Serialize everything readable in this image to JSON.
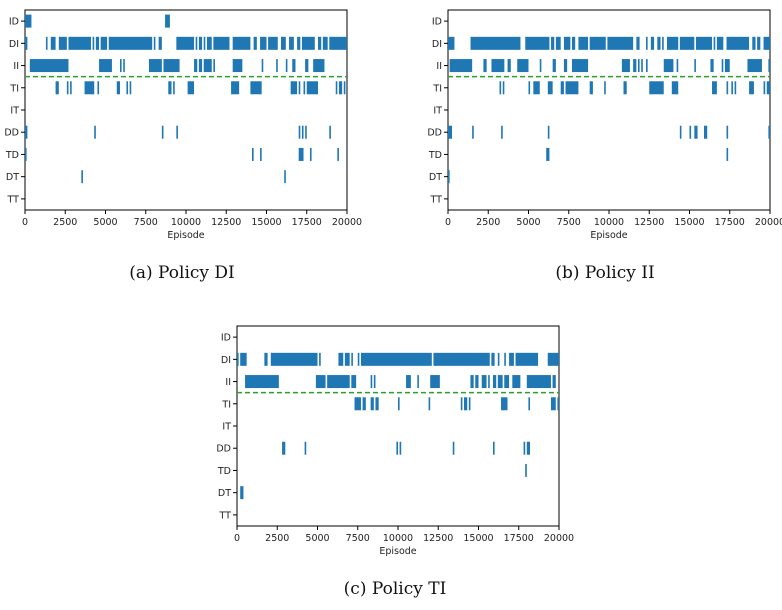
{
  "colors": {
    "bar": "#1f77b4",
    "divider": "#2ca02c",
    "axes": "#000000"
  },
  "chart_data": [
    {
      "type": "event-raster",
      "caption": "(a) Policy DI",
      "xlabel": "Episode",
      "xlim": [
        0,
        20000
      ],
      "xticks": [
        "0",
        "2500",
        "5000",
        "7500",
        "10000",
        "12500",
        "15000",
        "17500",
        "20000"
      ],
      "rows": [
        "ID",
        "DI",
        "II",
        "TI",
        "IT",
        "DD",
        "TD",
        "DT",
        "TT"
      ],
      "divider_between": [
        "II",
        "TI"
      ],
      "divider_style": "dashed",
      "segments": {
        "ID": [
          [
            0,
            400
          ],
          [
            8700,
            9000
          ]
        ],
        "DI": [
          [
            0,
            150
          ],
          [
            1300,
            1400
          ],
          [
            1600,
            1900
          ],
          [
            2100,
            2600
          ],
          [
            2700,
            4100
          ],
          [
            4200,
            4300
          ],
          [
            4400,
            4600
          ],
          [
            4700,
            5100
          ],
          [
            5200,
            7900
          ],
          [
            8000,
            8100
          ],
          [
            8300,
            8500
          ],
          [
            9400,
            10500
          ],
          [
            10600,
            10700
          ],
          [
            10800,
            11000
          ],
          [
            11100,
            11200
          ],
          [
            11300,
            11600
          ],
          [
            11700,
            12700
          ],
          [
            12900,
            14000
          ],
          [
            14200,
            14400
          ],
          [
            14600,
            15000
          ],
          [
            15100,
            15700
          ],
          [
            15900,
            16200
          ],
          [
            16400,
            16700
          ],
          [
            16900,
            17100
          ],
          [
            17200,
            18000
          ],
          [
            18200,
            18400
          ],
          [
            18500,
            18800
          ],
          [
            18900,
            20000
          ]
        ],
        "II": [
          [
            300,
            2700
          ],
          [
            4600,
            5400
          ],
          [
            5900,
            6000
          ],
          [
            6100,
            6200
          ],
          [
            7700,
            8500
          ],
          [
            8600,
            9600
          ],
          [
            10500,
            10700
          ],
          [
            10800,
            11000
          ],
          [
            11100,
            11600
          ],
          [
            11700,
            11800
          ],
          [
            12900,
            13500
          ],
          [
            14700,
            14800
          ],
          [
            15600,
            15700
          ],
          [
            16200,
            16300
          ],
          [
            16600,
            16800
          ],
          [
            17400,
            17600
          ],
          [
            17900,
            18600
          ]
        ],
        "TI": [
          [
            1900,
            2100
          ],
          [
            2600,
            2700
          ],
          [
            2800,
            2900
          ],
          [
            3700,
            4300
          ],
          [
            4500,
            4600
          ],
          [
            5700,
            5900
          ],
          [
            6300,
            6400
          ],
          [
            6500,
            6600
          ],
          [
            8900,
            9100
          ],
          [
            9200,
            9300
          ],
          [
            10100,
            10500
          ],
          [
            12800,
            13300
          ],
          [
            14000,
            14700
          ],
          [
            16500,
            16900
          ],
          [
            17000,
            17100
          ],
          [
            17300,
            17400
          ],
          [
            17500,
            18200
          ],
          [
            19300,
            19400
          ],
          [
            19500,
            19700
          ],
          [
            19800,
            19900
          ]
        ],
        "IT": [],
        "DD": [
          [
            0,
            150
          ],
          [
            4300,
            4400
          ],
          [
            8500,
            8600
          ],
          [
            9400,
            9500
          ],
          [
            17000,
            17100
          ],
          [
            17200,
            17300
          ],
          [
            17400,
            17500
          ],
          [
            18900,
            19000
          ]
        ],
        "TD": [
          [
            0,
            100
          ],
          [
            14100,
            14200
          ],
          [
            14600,
            14700
          ],
          [
            17000,
            17300
          ],
          [
            17700,
            17800
          ],
          [
            19400,
            19500
          ]
        ],
        "DT": [
          [
            3500,
            3600
          ],
          [
            16100,
            16200
          ]
        ],
        "TT": []
      }
    },
    {
      "type": "event-raster",
      "caption": "(b) Policy II",
      "xlabel": "Episode",
      "xlim": [
        0,
        20000
      ],
      "xticks": [
        "0",
        "2500",
        "5000",
        "7500",
        "10000",
        "12500",
        "15000",
        "17500",
        "20000"
      ],
      "rows": [
        "ID",
        "DI",
        "II",
        "TI",
        "IT",
        "DD",
        "TD",
        "DT",
        "TT"
      ],
      "divider_between": [
        "II",
        "TI"
      ],
      "divider_style": "dashed",
      "segments": {
        "ID": [],
        "DI": [
          [
            0,
            400
          ],
          [
            1400,
            4500
          ],
          [
            4800,
            6300
          ],
          [
            6400,
            6600
          ],
          [
            6700,
            7000
          ],
          [
            7200,
            7600
          ],
          [
            7700,
            7900
          ],
          [
            8100,
            8700
          ],
          [
            8800,
            9800
          ],
          [
            9900,
            11500
          ],
          [
            11700,
            11900
          ],
          [
            12300,
            12400
          ],
          [
            12600,
            12800
          ],
          [
            13000,
            13200
          ],
          [
            13300,
            13400
          ],
          [
            13600,
            14300
          ],
          [
            14400,
            15300
          ],
          [
            15400,
            16400
          ],
          [
            16500,
            16600
          ],
          [
            16700,
            17100
          ],
          [
            17300,
            18700
          ],
          [
            18900,
            19100
          ],
          [
            19200,
            19400
          ],
          [
            19600,
            20000
          ]
        ],
        "II": [
          [
            100,
            1500
          ],
          [
            2200,
            2400
          ],
          [
            2700,
            3500
          ],
          [
            3700,
            3900
          ],
          [
            4300,
            5000
          ],
          [
            5700,
            5800
          ],
          [
            6500,
            6700
          ],
          [
            7200,
            7400
          ],
          [
            7700,
            8700
          ],
          [
            10800,
            11300
          ],
          [
            11500,
            11700
          ],
          [
            11800,
            11900
          ],
          [
            12000,
            12100
          ],
          [
            12300,
            12400
          ],
          [
            13400,
            14000
          ],
          [
            14200,
            14300
          ],
          [
            15300,
            15400
          ],
          [
            16300,
            16500
          ],
          [
            17000,
            17100
          ],
          [
            17200,
            17500
          ],
          [
            18600,
            19500
          ],
          [
            19900,
            20000
          ]
        ],
        "TI": [
          [
            3200,
            3300
          ],
          [
            3400,
            3500
          ],
          [
            5000,
            5100
          ],
          [
            5300,
            5700
          ],
          [
            6200,
            6500
          ],
          [
            7000,
            7200
          ],
          [
            7300,
            8100
          ],
          [
            8800,
            9000
          ],
          [
            9700,
            9800
          ],
          [
            10900,
            11100
          ],
          [
            12500,
            13400
          ],
          [
            13900,
            14300
          ],
          [
            16400,
            16700
          ],
          [
            17300,
            17400
          ],
          [
            17600,
            17700
          ],
          [
            17800,
            17900
          ],
          [
            18700,
            19000
          ],
          [
            19600,
            19700
          ],
          [
            19800,
            20000
          ]
        ],
        "IT": [],
        "DD": [
          [
            0,
            250
          ],
          [
            1500,
            1600
          ],
          [
            3300,
            3400
          ],
          [
            6200,
            6300
          ],
          [
            14400,
            14500
          ],
          [
            15000,
            15100
          ],
          [
            15300,
            15500
          ],
          [
            15900,
            16100
          ],
          [
            17300,
            17400
          ],
          [
            19900,
            20000
          ]
        ],
        "TD": [
          [
            6100,
            6300
          ],
          [
            17300,
            17400
          ]
        ],
        "DT": [
          [
            0,
            100
          ]
        ],
        "TT": []
      }
    },
    {
      "type": "event-raster",
      "caption": "(c) Policy TI",
      "xlabel": "Episode",
      "xlim": [
        0,
        20000
      ],
      "xticks": [
        "0",
        "2500",
        "5000",
        "7500",
        "10000",
        "12500",
        "15000",
        "17500",
        "20000"
      ],
      "rows": [
        "ID",
        "DI",
        "II",
        "TI",
        "IT",
        "DD",
        "TD",
        "DT",
        "TT"
      ],
      "divider_between": [
        "II",
        "TI"
      ],
      "divider_style": "dashed",
      "segments": {
        "ID": [],
        "DI": [
          [
            0,
            100
          ],
          [
            200,
            600
          ],
          [
            1700,
            1900
          ],
          [
            2100,
            5000
          ],
          [
            5100,
            5200
          ],
          [
            6300,
            6600
          ],
          [
            6700,
            7000
          ],
          [
            7100,
            7200
          ],
          [
            7500,
            7600
          ],
          [
            7700,
            12100
          ],
          [
            12200,
            15700
          ],
          [
            15800,
            16000
          ],
          [
            16200,
            16300
          ],
          [
            16600,
            16700
          ],
          [
            16900,
            17200
          ],
          [
            17300,
            18700
          ],
          [
            19300,
            20000
          ]
        ],
        "II": [
          [
            500,
            2600
          ],
          [
            4900,
            5500
          ],
          [
            5600,
            7000
          ],
          [
            7100,
            7400
          ],
          [
            8300,
            8400
          ],
          [
            8500,
            8600
          ],
          [
            10500,
            10800
          ],
          [
            11200,
            11300
          ],
          [
            12000,
            12600
          ],
          [
            14500,
            14700
          ],
          [
            14800,
            15000
          ],
          [
            15200,
            15500
          ],
          [
            15600,
            15700
          ],
          [
            15900,
            16100
          ],
          [
            16200,
            16500
          ],
          [
            16600,
            16900
          ],
          [
            17100,
            17600
          ],
          [
            18000,
            19500
          ],
          [
            19600,
            19800
          ]
        ],
        "TI": [
          [
            7300,
            7700
          ],
          [
            7800,
            8000
          ],
          [
            8300,
            8500
          ],
          [
            8600,
            8800
          ],
          [
            10000,
            10100
          ],
          [
            11900,
            12000
          ],
          [
            13900,
            14000
          ],
          [
            14100,
            14300
          ],
          [
            14400,
            14500
          ],
          [
            16400,
            16800
          ],
          [
            18100,
            18200
          ],
          [
            19500,
            19800
          ],
          [
            19900,
            20000
          ]
        ],
        "IT": [],
        "DD": [
          [
            2800,
            3000
          ],
          [
            4200,
            4300
          ],
          [
            9900,
            10000
          ],
          [
            10100,
            10200
          ],
          [
            13400,
            13500
          ],
          [
            15900,
            16000
          ],
          [
            17800,
            17900
          ],
          [
            18000,
            18200
          ]
        ],
        "TD": [
          [
            17900,
            18000
          ]
        ],
        "DT": [
          [
            200,
            400
          ]
        ],
        "TT": []
      }
    }
  ]
}
